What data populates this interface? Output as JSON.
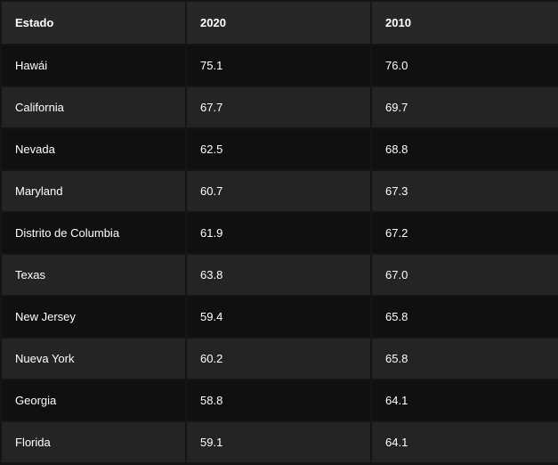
{
  "table": {
    "headers": [
      "Estado",
      "2020",
      "2010"
    ],
    "rows": [
      [
        "Hawái",
        "75.1",
        "76.0"
      ],
      [
        "California",
        "67.7",
        "69.7"
      ],
      [
        "Nevada",
        "62.5",
        "68.8"
      ],
      [
        "Maryland",
        "60.7",
        "67.3"
      ],
      [
        "Distrito de Columbia",
        "61.9",
        "67.2"
      ],
      [
        "Texas",
        "63.8",
        "67.0"
      ],
      [
        "New Jersey",
        "59.4",
        "65.8"
      ],
      [
        "Nueva York",
        "60.2",
        "65.8"
      ],
      [
        "Georgia",
        "58.8",
        "64.1"
      ],
      [
        "Florida",
        "59.1",
        "64.1"
      ]
    ]
  }
}
